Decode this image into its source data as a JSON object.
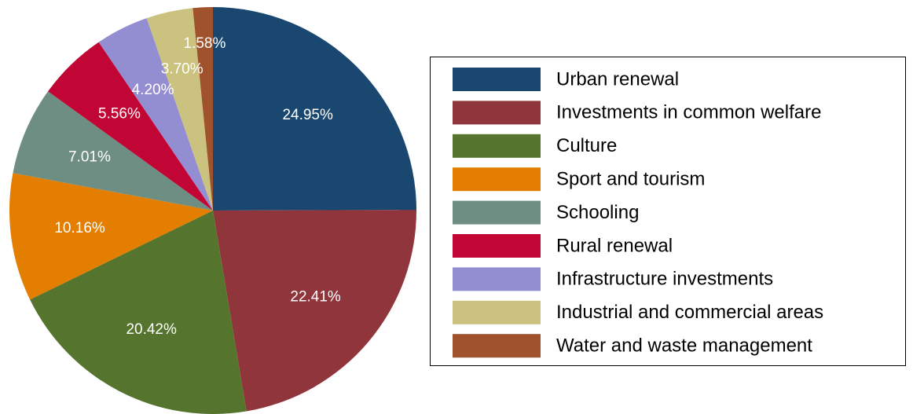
{
  "chart_data": {
    "type": "pie",
    "categories": [
      "Urban renewal",
      "Investments in common welfare",
      "Culture",
      "Sport and tourism",
      "Schooling",
      "Rural renewal",
      "Infrastructure investments",
      "Industrial and commercial areas",
      "Water and waste management"
    ],
    "values": [
      24.95,
      22.41,
      20.42,
      10.16,
      7.01,
      5.56,
      4.2,
      3.7,
      1.58
    ],
    "value_labels": [
      "24.95%",
      "22.41%",
      "20.42%",
      "10.16%",
      "7.01%",
      "5.56%",
      "4.20%",
      "3.70%",
      "1.58%"
    ],
    "colors": [
      "#1a476f",
      "#90353b",
      "#55752f",
      "#e37e00",
      "#6e8e84",
      "#c10534",
      "#938dd2",
      "#cac27e",
      "#a0522d"
    ],
    "legend_position": "right"
  }
}
